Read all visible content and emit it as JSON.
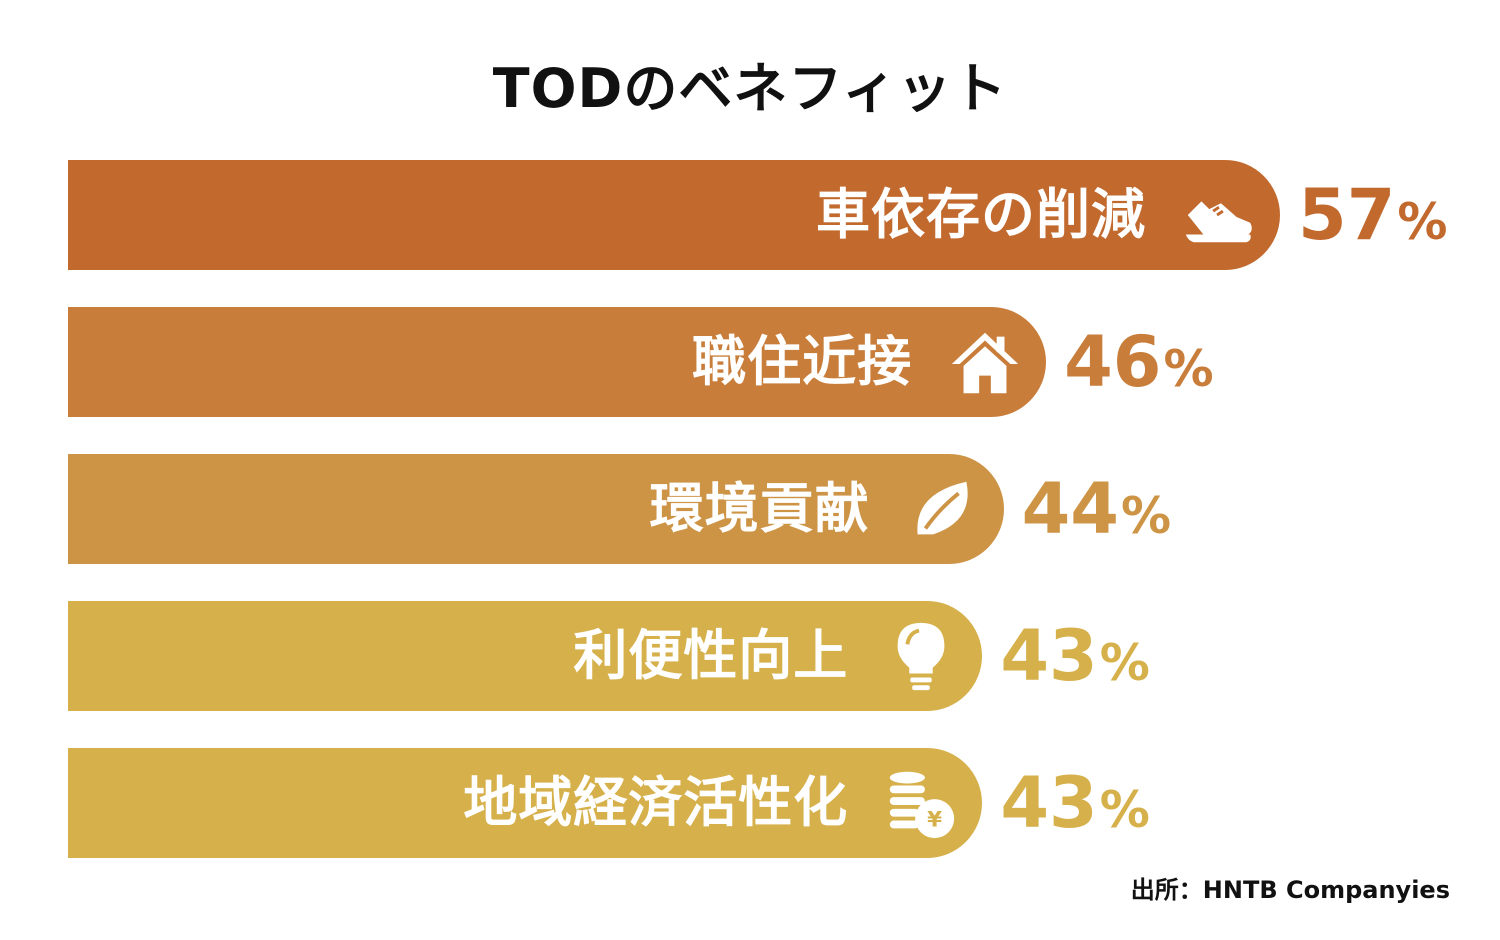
{
  "chart_data": {
    "type": "bar",
    "orientation": "horizontal",
    "title": "TODのベネフィット",
    "categories": [
      "車依存の削減",
      "職住近接",
      "環境貢献",
      "利便性向上",
      "地域経済活性化"
    ],
    "values": [
      57,
      46,
      44,
      43,
      43
    ],
    "value_suffix": "%",
    "xlim": [
      0,
      57
    ],
    "grid": false,
    "legend": "none",
    "bar_colors": [
      "#C2692E",
      "#C97D3A",
      "#CD9446",
      "#D6B04A",
      "#D6B04A"
    ],
    "icons": [
      "shoe-icon",
      "house-icon",
      "leaf-icon",
      "lightbulb-icon",
      "coins-yen-icon"
    ]
  },
  "source": "出所：HNTB Companyies"
}
